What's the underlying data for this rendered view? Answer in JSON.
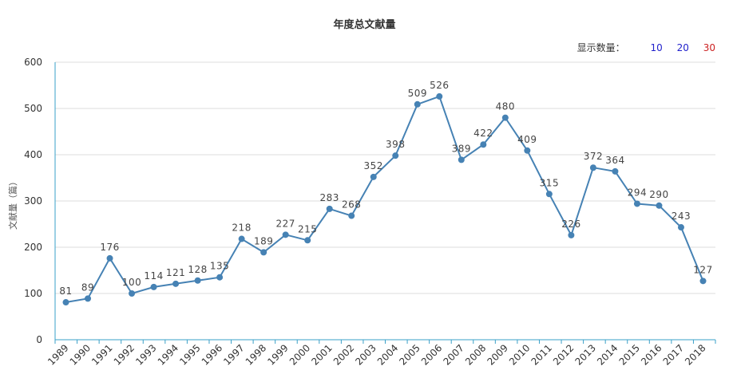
{
  "title": "年度总文献量",
  "display_count": {
    "label": "显示数量：",
    "options": [
      {
        "value": "10",
        "color": "#2222cc"
      },
      {
        "value": "20",
        "color": "#2222cc"
      },
      {
        "value": "30",
        "color": "#cc2222"
      }
    ]
  },
  "colors": {
    "line": "#4682b4",
    "axis": "#3aa0c8",
    "grid": "#dddddd"
  },
  "chart_data": {
    "type": "line",
    "title": "年度总文献量",
    "xlabel": "",
    "ylabel": "文献量（篇）",
    "ylim": [
      0,
      600
    ],
    "yticks": [
      0,
      100,
      200,
      300,
      400,
      500,
      600
    ],
    "grid": true,
    "categories": [
      "1989",
      "1990",
      "1991",
      "1992",
      "1993",
      "1994",
      "1995",
      "1996",
      "1997",
      "1998",
      "1999",
      "2000",
      "2001",
      "2002",
      "2003",
      "2004",
      "2005",
      "2006",
      "2007",
      "2008",
      "2009",
      "2010",
      "2011",
      "2012",
      "2013",
      "2014",
      "2015",
      "2016",
      "2017",
      "2018"
    ],
    "series": [
      {
        "name": "文献量",
        "values": [
          81,
          89,
          176,
          100,
          114,
          121,
          128,
          135,
          218,
          189,
          227,
          215,
          283,
          268,
          352,
          398,
          509,
          526,
          389,
          422,
          480,
          409,
          315,
          226,
          372,
          364,
          294,
          290,
          243,
          127
        ]
      }
    ]
  }
}
